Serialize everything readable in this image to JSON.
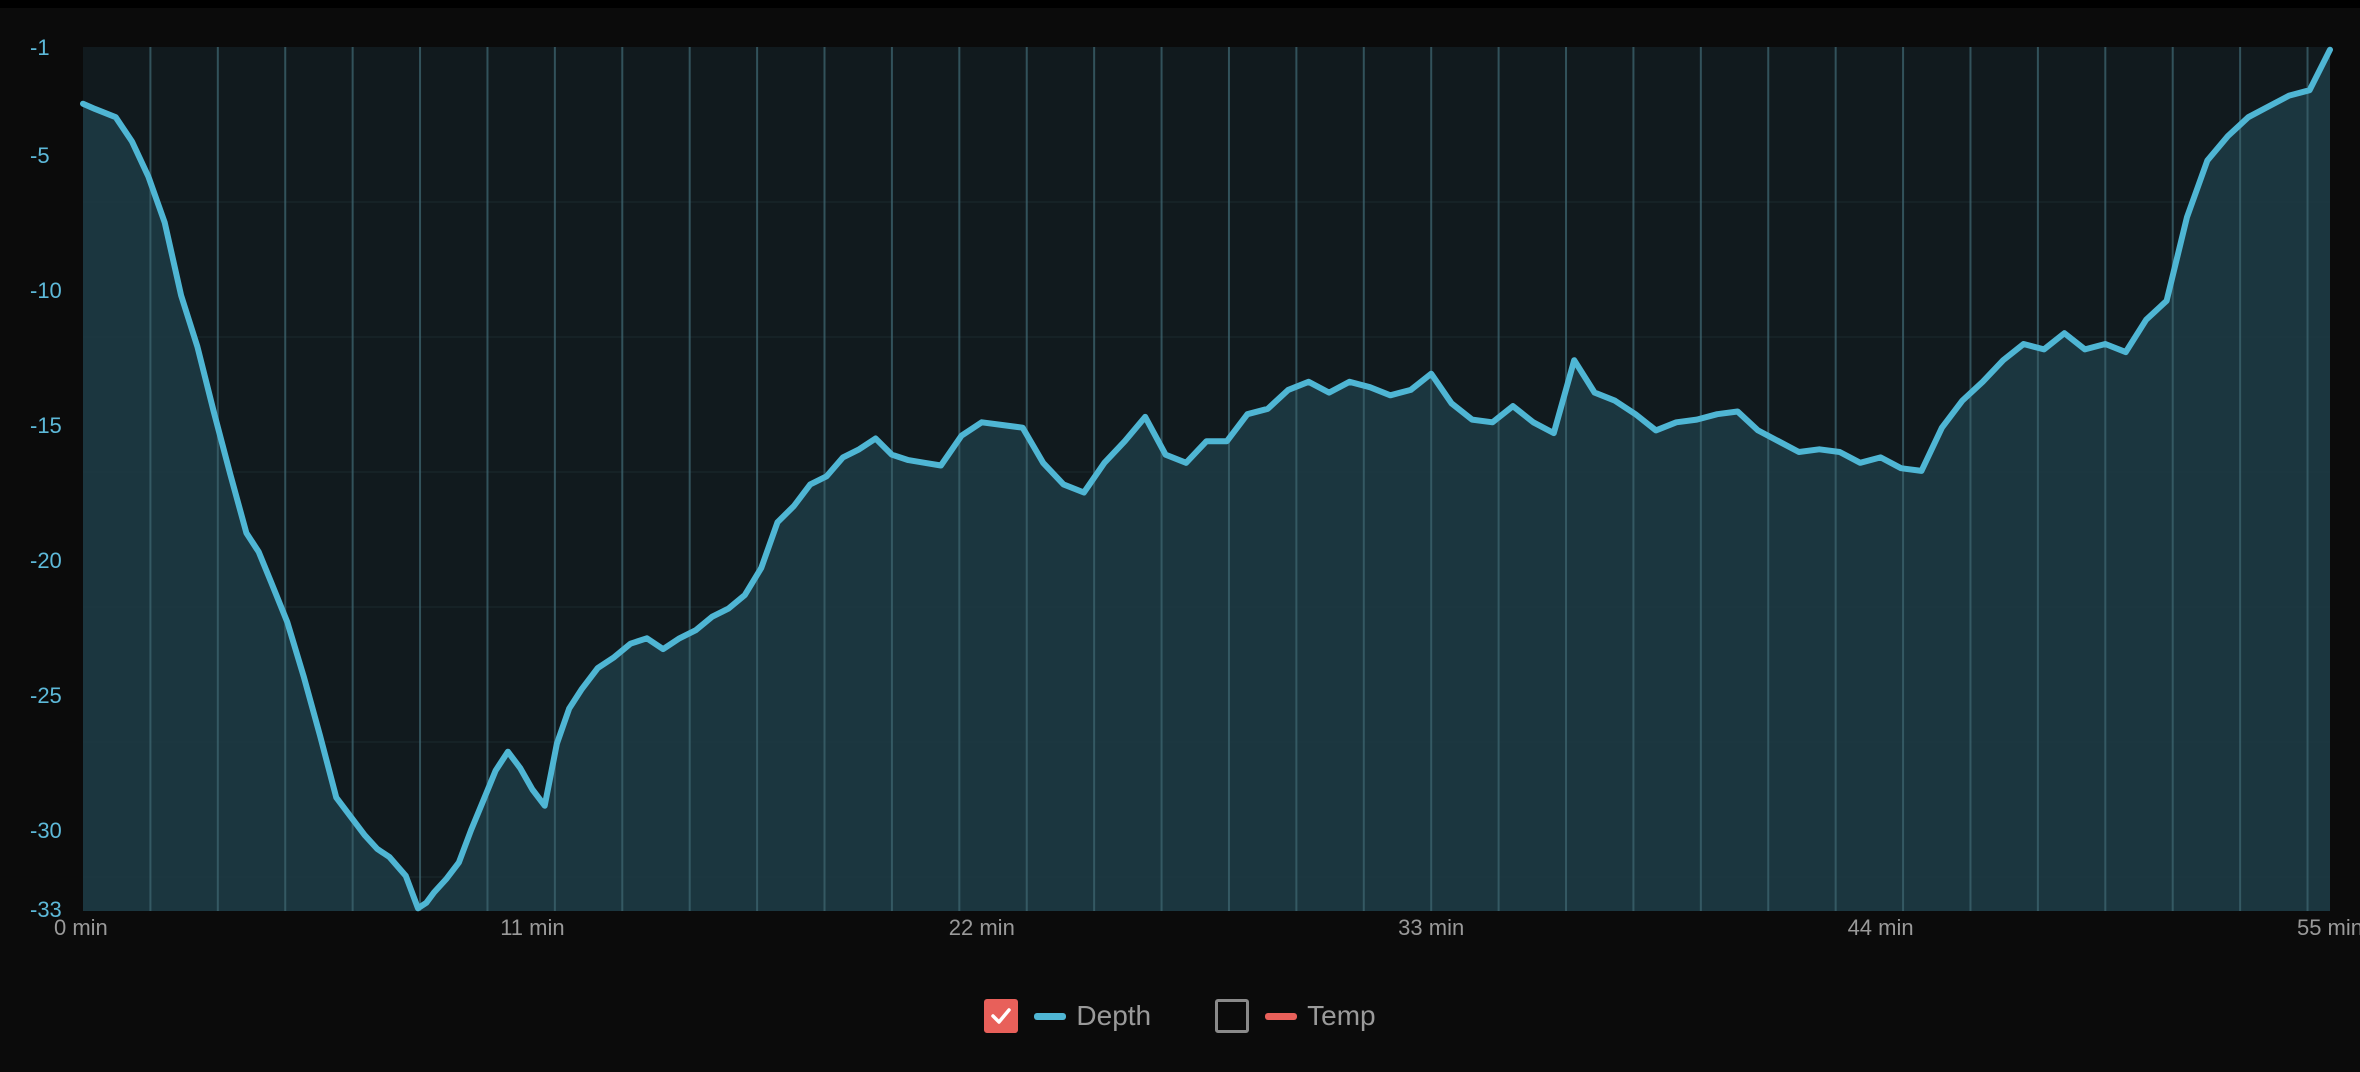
{
  "colors": {
    "depth": "#4fb6d4",
    "temp": "#e8605a",
    "bg": "#0b0b0b",
    "plot_bg": "#111a1e",
    "fill": "#1d3a42"
  },
  "legend": {
    "items": [
      {
        "label": "Depth",
        "checked": true,
        "color": "#4fb6d4"
      },
      {
        "label": "Temp",
        "checked": false,
        "color": "#e8605a"
      }
    ]
  },
  "chart_data": {
    "type": "area",
    "x_unit": "min",
    "xlim": [
      0,
      55
    ],
    "ylim": [
      -33,
      -1
    ],
    "yticks": [
      -1,
      -5,
      -10,
      -15,
      -20,
      -25,
      -30,
      -33
    ],
    "xticks": [
      "0 min",
      "11 min",
      "22 min",
      "33 min",
      "44 min",
      "55 min"
    ],
    "xtick_values": [
      0,
      11,
      22,
      33,
      44,
      55
    ],
    "vertical_markers_min": [
      1.65,
      3.3,
      4.95,
      6.6,
      8.25,
      9.9,
      11.55,
      13.2,
      14.85,
      16.5,
      18.15,
      19.8,
      21.45,
      23.1,
      24.75,
      26.4,
      28.05,
      29.7,
      31.35,
      33.0,
      34.65,
      36.3,
      37.95,
      39.6,
      41.25,
      42.9,
      44.55,
      46.2,
      47.85,
      49.5,
      51.15,
      52.8,
      54.45
    ],
    "series": [
      {
        "name": "Depth",
        "x": [
          0,
          0.3,
          0.8,
          1.2,
          1.6,
          2.0,
          2.4,
          2.8,
          3.2,
          3.6,
          4.0,
          4.3,
          4.6,
          5.0,
          5.4,
          5.8,
          6.2,
          6.6,
          6.9,
          7.2,
          7.5,
          7.9,
          8.2,
          8.4,
          8.6,
          8.9,
          9.2,
          9.5,
          9.8,
          10.1,
          10.4,
          10.7,
          11.0,
          11.3,
          11.6,
          11.9,
          12.2,
          12.6,
          13.0,
          13.4,
          13.8,
          14.2,
          14.6,
          15.0,
          15.4,
          15.8,
          16.2,
          16.6,
          17.0,
          17.4,
          17.8,
          18.2,
          18.6,
          19.0,
          19.4,
          19.8,
          20.2,
          20.6,
          21.0,
          21.5,
          22.0,
          22.5,
          23.0,
          23.5,
          24.0,
          24.5,
          25.0,
          25.5,
          26.0,
          26.5,
          27.0,
          27.5,
          28.0,
          28.5,
          29.0,
          29.5,
          30.0,
          30.5,
          31.0,
          31.5,
          32.0,
          32.5,
          33.0,
          33.5,
          34.0,
          34.5,
          35.0,
          35.5,
          36.0,
          36.5,
          37.0,
          37.5,
          38.0,
          38.5,
          39.0,
          39.5,
          40.0,
          40.5,
          41.0,
          41.5,
          42.0,
          42.5,
          43.0,
          43.5,
          44.0,
          44.5,
          45.0,
          45.5,
          46.0,
          46.5,
          47.0,
          47.5,
          48.0,
          48.5,
          49.0,
          49.5,
          50.0,
          50.5,
          51.0,
          51.5,
          52.0,
          52.5,
          53.0,
          53.5,
          54.0,
          54.5,
          55.0
        ],
        "y": [
          -3.1,
          -3.3,
          -3.6,
          -4.5,
          -5.8,
          -7.5,
          -10.2,
          -12.1,
          -14.5,
          -16.8,
          -19.0,
          -19.7,
          -20.8,
          -22.3,
          -24.3,
          -26.5,
          -28.8,
          -29.6,
          -30.2,
          -30.7,
          -31.0,
          -31.7,
          -32.9,
          -32.7,
          -32.3,
          -31.8,
          -31.2,
          -30.0,
          -28.9,
          -27.8,
          -27.1,
          -27.7,
          -28.5,
          -29.1,
          -26.8,
          -25.5,
          -24.8,
          -24.0,
          -23.6,
          -23.1,
          -22.9,
          -23.3,
          -22.9,
          -22.6,
          -22.1,
          -21.8,
          -21.3,
          -20.3,
          -18.6,
          -18.0,
          -17.2,
          -16.9,
          -16.2,
          -15.9,
          -15.5,
          -16.1,
          -16.3,
          -16.4,
          -16.5,
          -15.4,
          -14.9,
          -15.0,
          -15.1,
          -16.4,
          -17.2,
          -17.5,
          -16.4,
          -15.6,
          -14.7,
          -16.1,
          -16.4,
          -15.6,
          -15.6,
          -14.6,
          -14.4,
          -13.7,
          -13.4,
          -13.8,
          -13.4,
          -13.6,
          -13.9,
          -13.7,
          -13.1,
          -14.2,
          -14.8,
          -14.9,
          -14.3,
          -14.9,
          -15.3,
          -12.6,
          -13.8,
          -14.1,
          -14.6,
          -15.2,
          -14.9,
          -14.8,
          -14.6,
          -14.5,
          -15.2,
          -15.6,
          -16.0,
          -15.9,
          -16.0,
          -16.4,
          -16.2,
          -16.6,
          -16.7,
          -15.1,
          -14.1,
          -13.4,
          -12.6,
          -12.0,
          -12.2,
          -11.6,
          -12.2,
          -12.0,
          -12.3,
          -11.1,
          -10.4,
          -7.3,
          -5.2,
          -4.3,
          -3.6,
          -3.2,
          -2.8,
          -2.6,
          -1.1
        ]
      },
      {
        "name": "Temp",
        "x": [],
        "y": []
      }
    ]
  }
}
